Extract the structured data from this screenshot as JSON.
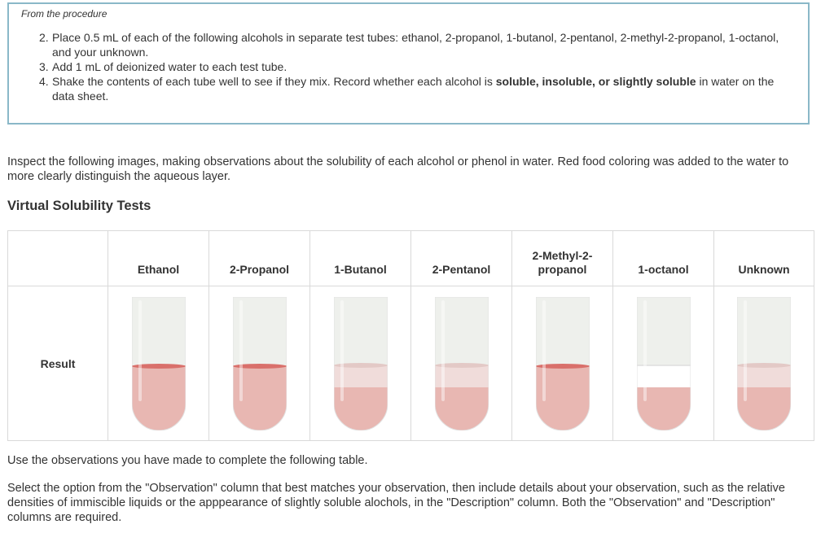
{
  "procedure": {
    "caption": "From the procedure",
    "steps": [
      {
        "num": "2.",
        "text": "Place 0.5 mL of each of the following alcohols in separate test tubes: ethanol, 2-propanol, 1-butanol, 2-pentanol, 2-methyl-2-propanol, 1-octanol, and your unknown."
      },
      {
        "num": "3.",
        "text": "Add 1 mL of deionized water to each test tube."
      },
      {
        "num": "4.",
        "text_before": "Shake the contents of each tube well to see if they mix. Record whether each alcohol is ",
        "text_bold": "soluble, insoluble, or slightly soluble",
        "text_after": " in water on the data sheet."
      }
    ]
  },
  "intro": "Inspect the following images, making observations about the solubility of each alcohol or phenol in water. Red food coloring was added to the water to more clearly distinguish the aqueous layer.",
  "section_heading": "Virtual Solubility Tests",
  "table": {
    "headers": [
      "",
      "Ethanol",
      "2-Propanol",
      "1-Butanol",
      "2-Pentanol",
      "2-Methyl-2-\npropanol",
      "1-octanol",
      "Unknown"
    ],
    "row_label": "Result",
    "tubes": [
      {
        "appearance": "single-layer",
        "top_color": "#eef0ec",
        "aqueous_color": "#e8b7b2",
        "meniscus_color": "#d9706b"
      },
      {
        "appearance": "single-layer",
        "top_color": "#eef0ec",
        "aqueous_color": "#e8b7b2",
        "meniscus_color": "#d9706b"
      },
      {
        "appearance": "cloudy-layer",
        "top_color": "#eef0ec",
        "aqueous_color": "#e8b7b2",
        "layer_color": "#f0dcda"
      },
      {
        "appearance": "cloudy-layer",
        "top_color": "#eef0ec",
        "aqueous_color": "#e8b7b2",
        "layer_color": "#f0dcda"
      },
      {
        "appearance": "single-layer",
        "top_color": "#eef0ec",
        "aqueous_color": "#e8b7b2",
        "meniscus_color": "#d9706b"
      },
      {
        "appearance": "clear-layer",
        "top_color": "#eef0ec",
        "aqueous_color": "#e8b7b2",
        "layer_color": "#ffffff"
      },
      {
        "appearance": "cloudy-layer",
        "top_color": "#eef0ec",
        "aqueous_color": "#e8b7b2",
        "layer_color": "#f0dcda"
      }
    ]
  },
  "paragraph1": "Use the observations you have made to complete the following table.",
  "paragraph2": "Select the option from the \"Observation\" column that best matches your observation, then include details about your observation, such as the relative densities of immiscible liquids or the apppearance of slightly soluble alochols, in the \"Description\" column. Both the \"Observation\" and \"Description\" columns are required.",
  "colors": {
    "box_border": "#8ab8c8",
    "table_border": "#d9d9d9",
    "text": "#333333"
  }
}
